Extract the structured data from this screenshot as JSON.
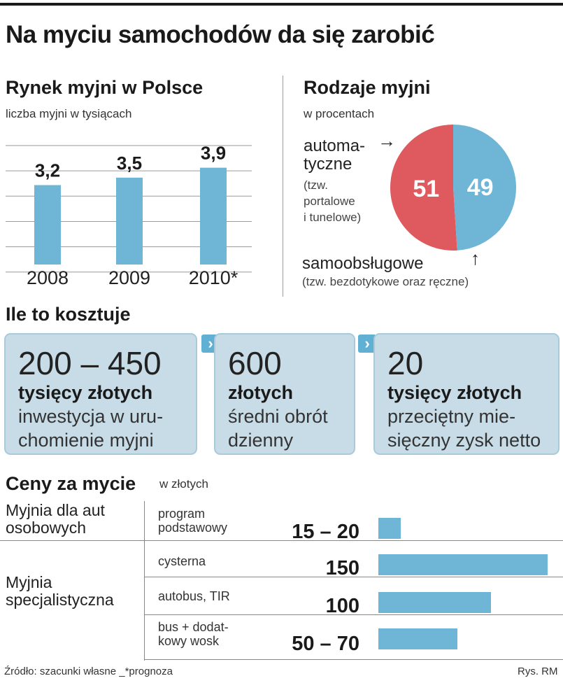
{
  "title": "Na myciu samochodów da się zarobić",
  "chart_data": [
    {
      "type": "bar",
      "title": "Rynek myjni w Polsce",
      "subtitle": "liczba myjni w tysiącach",
      "categories": [
        "2008",
        "2009",
        "2010*"
      ],
      "values": [
        3.2,
        3.5,
        3.9
      ],
      "value_labels": [
        "3,2",
        "3,5",
        "3,9"
      ],
      "ylim": [
        0,
        5.3
      ],
      "grid": true,
      "color": "#6fb6d6"
    },
    {
      "type": "pie",
      "title": "Rodzaje myjni",
      "subtitle": "w procentach",
      "slices": [
        {
          "label": "automatyczne",
          "value": 51,
          "color": "#de5a5f"
        },
        {
          "label": "samoobsługowe",
          "value": 49,
          "color": "#6fb6d6"
        }
      ]
    },
    {
      "type": "bar",
      "title": "Ceny za mycie",
      "subtitle": "w złotych",
      "orientation": "horizontal",
      "categories": [
        "program podstawowy",
        "cysterna",
        "autobus, TIR",
        "bus + dodatkowy wosk"
      ],
      "values_range": [
        [
          15,
          20
        ],
        [
          150,
          150
        ],
        [
          100,
          100
        ],
        [
          50,
          70
        ]
      ],
      "value_labels": [
        "15 – 20",
        "150",
        "100",
        "50 – 70"
      ],
      "xlim": [
        0,
        150
      ],
      "color": "#6fb6d6"
    }
  ],
  "market": {
    "title": "Rynek myjni w Polsce",
    "subtitle": "liczba myjni w tysiącach"
  },
  "types": {
    "title": "Rodzaje myjni",
    "subtitle": "w procentach",
    "auto_line1": "automa-",
    "auto_line2": "tyczne",
    "auto_note1": "(tzw.",
    "auto_note2": "portalowe",
    "auto_note3": "i tunelowe)",
    "self_label": "samoobsługowe",
    "self_note": "(tzw. bezdotykowe oraz ręczne)",
    "arrow_right": "→",
    "arrow_up": "↑"
  },
  "costs": {
    "title": "Ile to kosztuje",
    "chevron": "›",
    "cards": [
      {
        "big": "200 – 450",
        "bold": "tysięcy złotych",
        "desc1": "inwestycja w uru-",
        "desc2": "chomienie myjni"
      },
      {
        "big": "600",
        "bold": "złotych",
        "desc1": "średni obrót",
        "desc2": "dzienny"
      },
      {
        "big": "20",
        "bold": "tysięcy złotych",
        "desc1": "przeciętny mie-",
        "desc2": "sięczny zysk netto"
      }
    ]
  },
  "prices": {
    "title": "Ceny za mycie",
    "subtitle": "w złotych",
    "group1_line1": "Myjnia dla aut",
    "group1_line2": "osobowych",
    "group2_line1": "Myjnia",
    "group2_line2": "specjalistyczna",
    "rows": [
      {
        "l1": "program",
        "l2": "podstawowy"
      },
      {
        "l1": "cysterna",
        "l2": ""
      },
      {
        "l1": "autobus, TIR",
        "l2": ""
      },
      {
        "l1": "bus + dodat-",
        "l2": "kowy wosk"
      }
    ]
  },
  "footer": {
    "source": "Źródło: szacunki własne _*prognoza",
    "credit": "Rys. RM"
  }
}
